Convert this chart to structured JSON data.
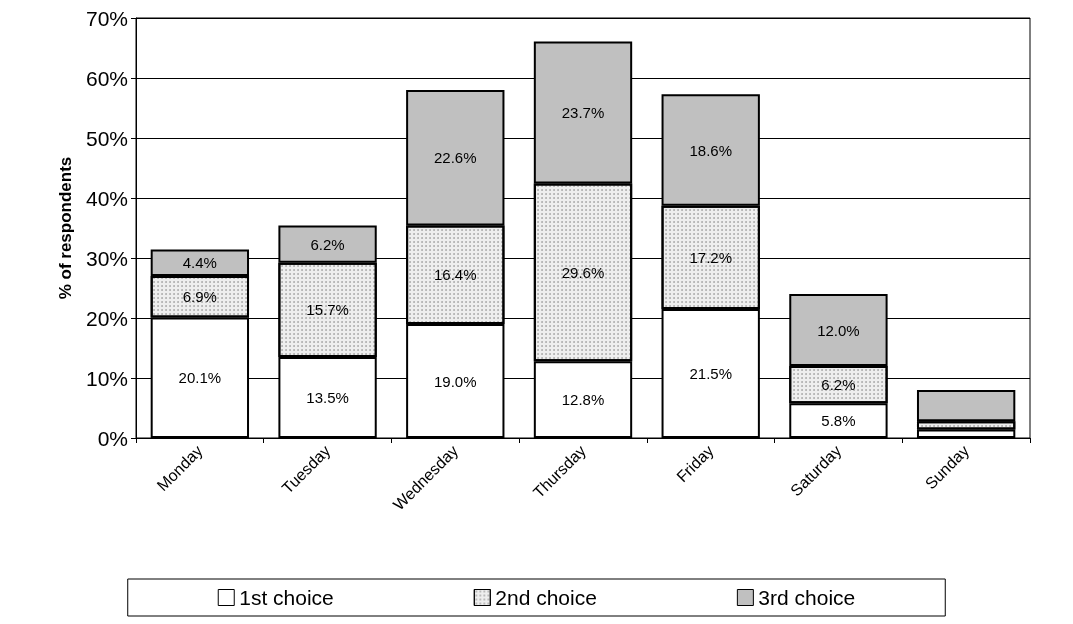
{
  "chart_data": {
    "type": "bar",
    "stacked": true,
    "ylabel": "% of respondents",
    "categories": [
      "Monday",
      "Tuesday",
      "Wednesday",
      "Thursday",
      "Friday",
      "Saturday",
      "Sunday"
    ],
    "series": [
      {
        "name": "1st choice",
        "color": "#ffffff",
        "values": [
          20.1,
          13.5,
          19.0,
          12.8,
          21.5,
          5.8,
          1.4
        ],
        "value_labels": [
          "20.1%",
          "13.5%",
          "19.0%",
          "12.8%",
          "21.5%",
          "5.8%",
          null
        ]
      },
      {
        "name": "2nd choice",
        "color": "#eeeeee",
        "values": [
          6.9,
          15.7,
          16.4,
          29.6,
          17.2,
          6.2,
          1.4
        ],
        "value_labels": [
          "6.9%",
          "15.7%",
          "16.4%",
          "29.6%",
          "17.2%",
          "6.2%",
          null
        ]
      },
      {
        "name": "3rd choice",
        "color": "#c0c0c0",
        "values": [
          4.4,
          6.2,
          22.6,
          23.7,
          18.6,
          12.0,
          5.2
        ],
        "value_labels": [
          "4.4%",
          "6.2%",
          "22.6%",
          "23.7%",
          "18.6%",
          "12.0%",
          null
        ]
      }
    ],
    "ylim": [
      0,
      70
    ],
    "yticks": [
      {
        "value": 0,
        "label": "0%"
      },
      {
        "value": 10,
        "label": "10%"
      },
      {
        "value": 20,
        "label": "20%"
      },
      {
        "value": 30,
        "label": "30%"
      },
      {
        "value": 40,
        "label": "40%"
      },
      {
        "value": 50,
        "label": "50%"
      },
      {
        "value": 60,
        "label": "60%"
      },
      {
        "value": 70,
        "label": "70%"
      }
    ],
    "grid": "y",
    "legend": "bottom"
  }
}
